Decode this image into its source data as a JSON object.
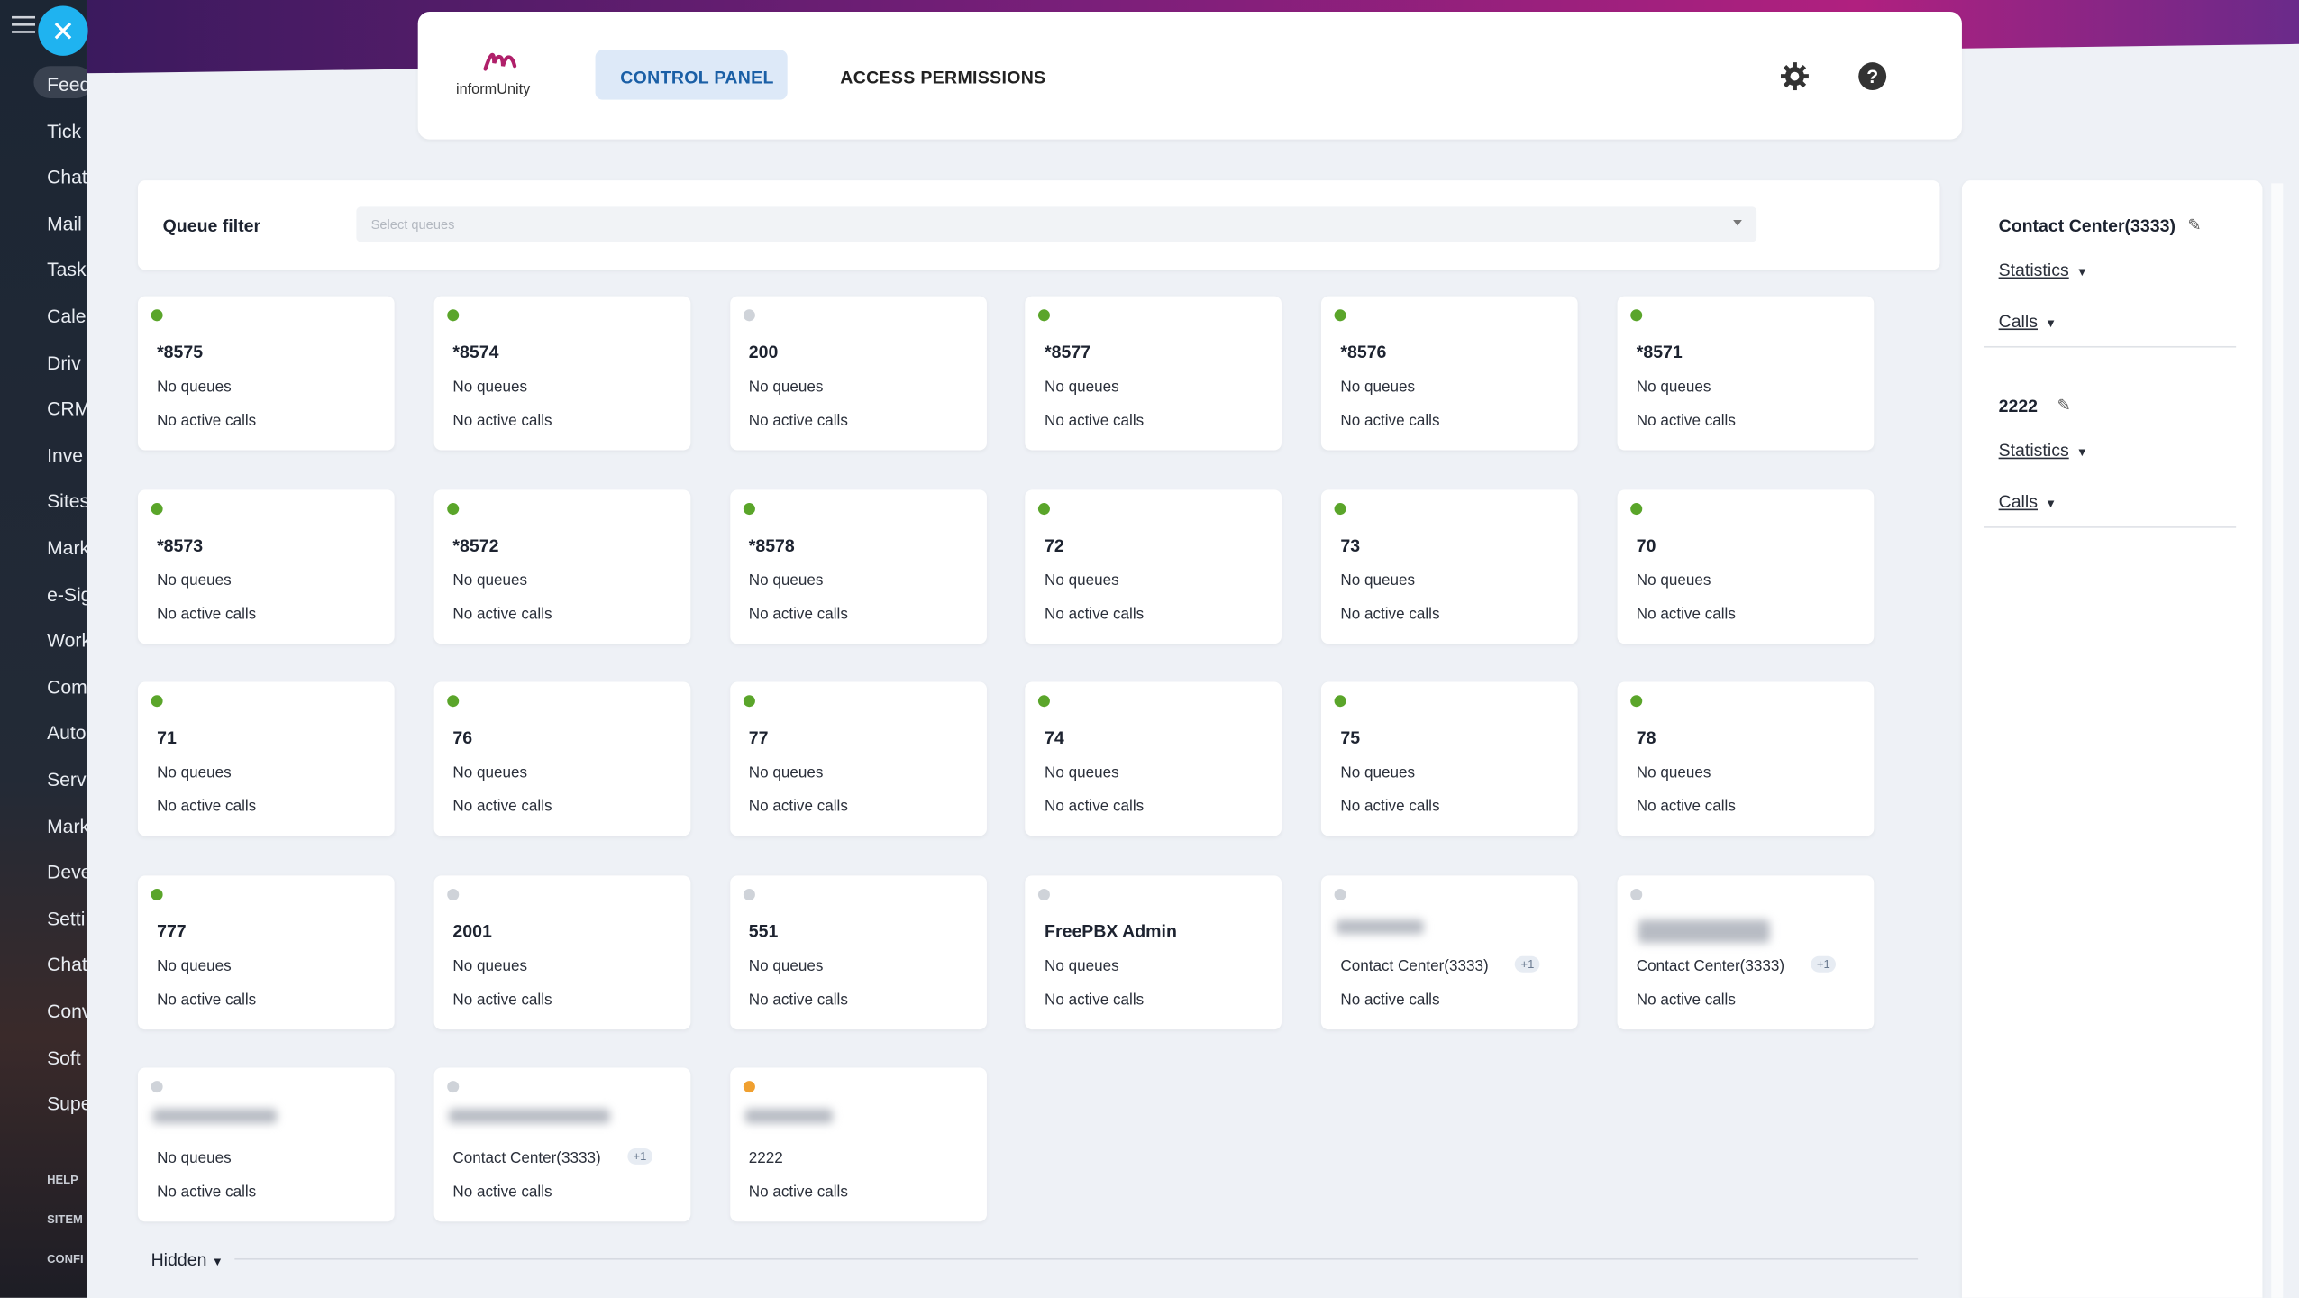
{
  "sidebar": {
    "items": [
      "Feed",
      "Tick",
      "Chat",
      "Mail",
      "Task",
      "Cale",
      "Driv",
      "CRM",
      "Inve",
      "Sites",
      "Mark",
      "e-Sig",
      "Work",
      "Com",
      "Auto",
      "Serv",
      "Mark",
      "Deve",
      "Setti",
      "Chat",
      "Conv",
      "Soft",
      "Supe"
    ],
    "footer": [
      "HELP",
      "SITEM",
      "CONFI"
    ]
  },
  "header": {
    "logo": "informUnity",
    "tabs": [
      "CONTROL PANEL",
      "ACCESS PERMISSIONS"
    ]
  },
  "filter": {
    "label": "Queue filter",
    "placeholder": "Select queues"
  },
  "cards": [
    {
      "status": "online",
      "name": "*8575",
      "queues": "No queues",
      "calls": "No active calls"
    },
    {
      "status": "online",
      "name": "*8574",
      "queues": "No queues",
      "calls": "No active calls"
    },
    {
      "status": "offline",
      "name": "200",
      "queues": "No queues",
      "calls": "No active calls"
    },
    {
      "status": "online",
      "name": "*8577",
      "queues": "No queues",
      "calls": "No active calls"
    },
    {
      "status": "online",
      "name": "*8576",
      "queues": "No queues",
      "calls": "No active calls"
    },
    {
      "status": "online",
      "name": "*8571",
      "queues": "No queues",
      "calls": "No active calls"
    },
    {
      "status": "online",
      "name": "*8573",
      "queues": "No queues",
      "calls": "No active calls"
    },
    {
      "status": "online",
      "name": "*8572",
      "queues": "No queues",
      "calls": "No active calls"
    },
    {
      "status": "online",
      "name": "*8578",
      "queues": "No queues",
      "calls": "No active calls"
    },
    {
      "status": "online",
      "name": "72",
      "queues": "No queues",
      "calls": "No active calls"
    },
    {
      "status": "online",
      "name": "73",
      "queues": "No queues",
      "calls": "No active calls"
    },
    {
      "status": "online",
      "name": "70",
      "queues": "No queues",
      "calls": "No active calls"
    },
    {
      "status": "online",
      "name": "71",
      "queues": "No queues",
      "calls": "No active calls"
    },
    {
      "status": "online",
      "name": "76",
      "queues": "No queues",
      "calls": "No active calls"
    },
    {
      "status": "online",
      "name": "77",
      "queues": "No queues",
      "calls": "No active calls"
    },
    {
      "status": "online",
      "name": "74",
      "queues": "No queues",
      "calls": "No active calls"
    },
    {
      "status": "online",
      "name": "75",
      "queues": "No queues",
      "calls": "No active calls"
    },
    {
      "status": "online",
      "name": "78",
      "queues": "No queues",
      "calls": "No active calls"
    },
    {
      "status": "online",
      "name": "777",
      "queues": "No queues",
      "calls": "No active calls"
    },
    {
      "status": "offline",
      "name": "2001",
      "queues": "No queues",
      "calls": "No active calls"
    },
    {
      "status": "offline",
      "name": "551",
      "queues": "No queues",
      "calls": "No active calls"
    },
    {
      "status": "offline",
      "name": "FreePBX Admin",
      "queues": "No queues",
      "calls": "No active calls"
    },
    {
      "status": "offline",
      "queues": "Contact Center(3333)",
      "badge": "+1",
      "calls": "No active calls"
    },
    {
      "status": "offline",
      "queues": "Contact Center(3333)",
      "badge": "+1",
      "calls": "No active calls"
    },
    {
      "status": "offline",
      "queues": "No queues",
      "calls": "No active calls"
    },
    {
      "status": "offline",
      "queues": "Contact Center(3333)",
      "badge": "+1",
      "calls": "No active calls"
    },
    {
      "status": "busy",
      "queues": "2222",
      "calls": "No active calls"
    }
  ],
  "panel": {
    "groups": [
      {
        "name": "Contact Center(3333)",
        "items": [
          "Statistics",
          "Calls"
        ]
      },
      {
        "name": "2222",
        "items": [
          "Statistics",
          "Calls"
        ]
      }
    ]
  },
  "hidden": "Hidden"
}
